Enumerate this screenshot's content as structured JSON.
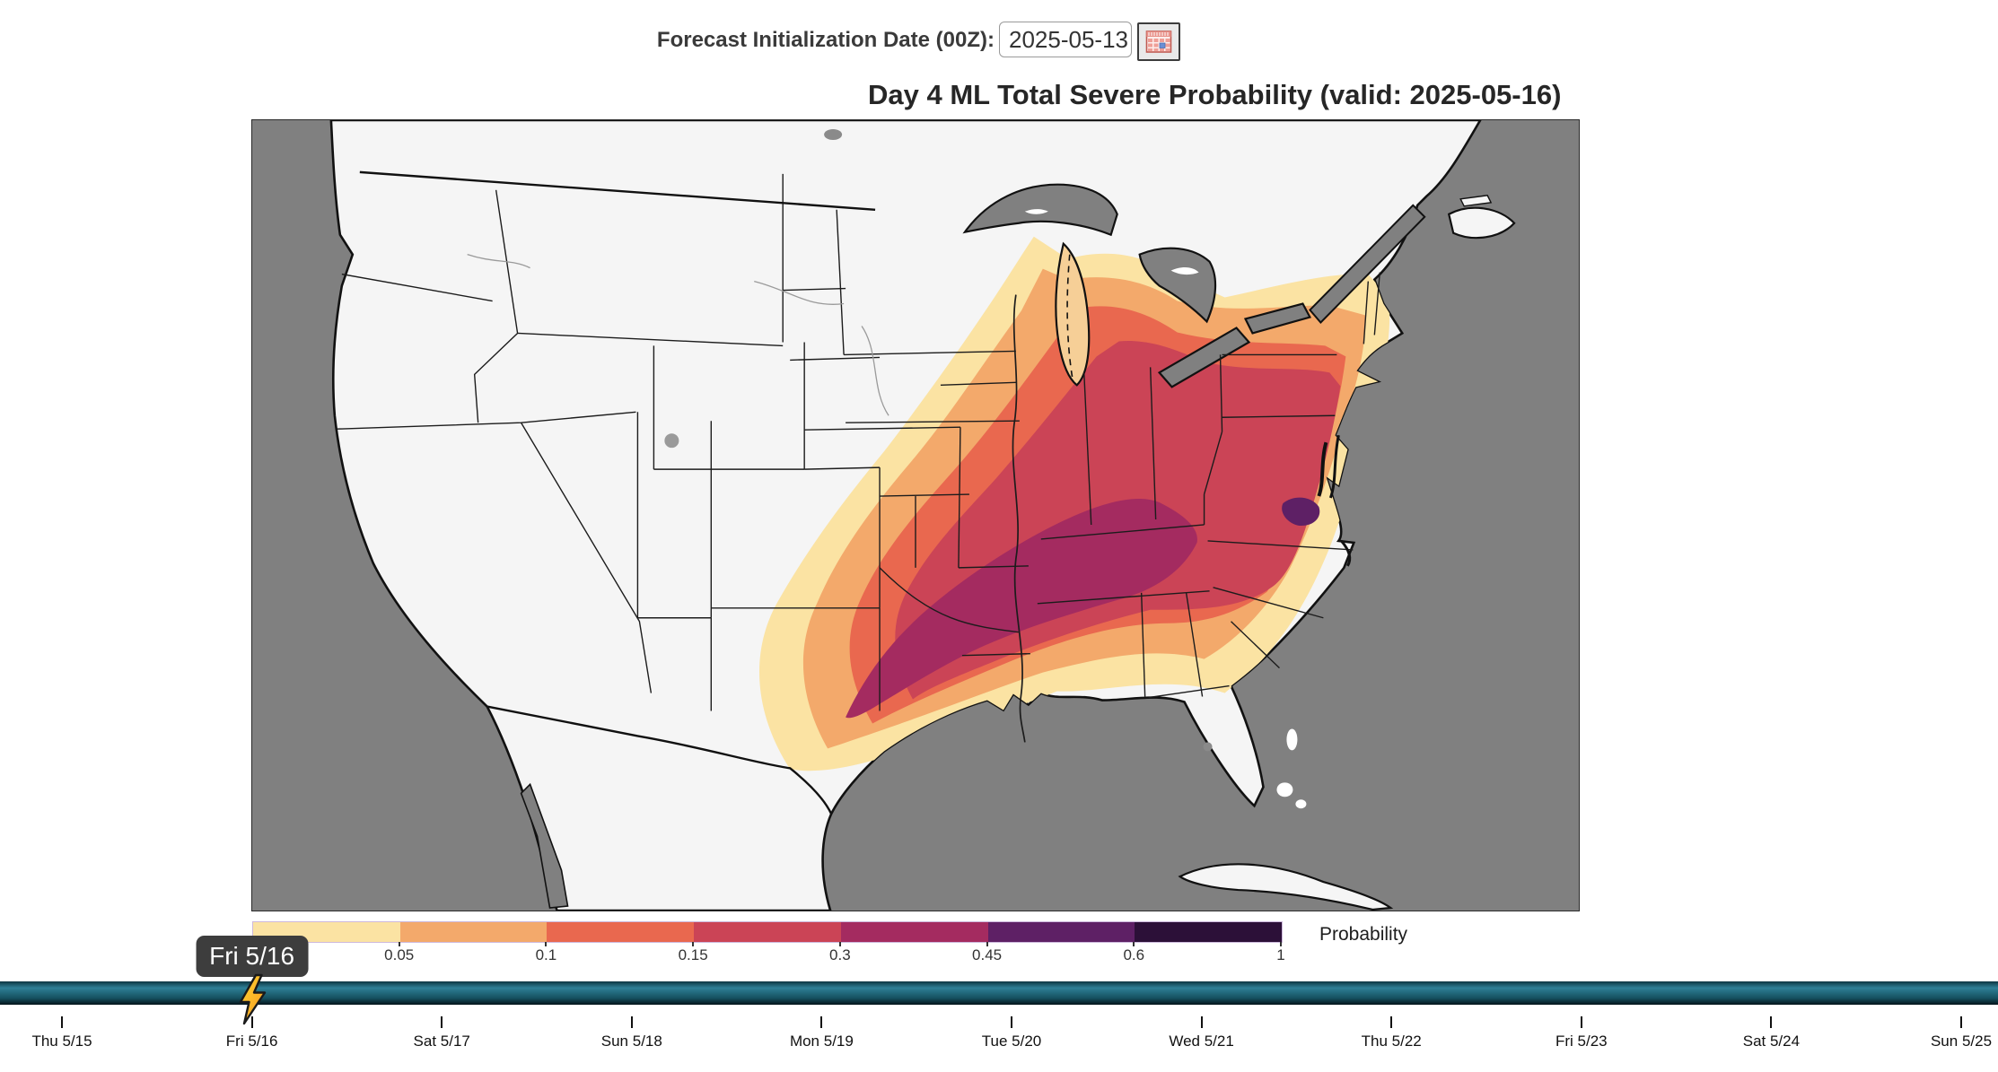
{
  "header": {
    "label": "Forecast Initialization Date (00Z):",
    "date_input": {
      "value": "2025-05-13"
    },
    "calendar_button": {
      "icon": "calendar-icon"
    }
  },
  "map": {
    "title": "Day 4 ML Total Severe Probability (valid: 2025-05-16)",
    "ocean_color": "#808080",
    "land_color": "#f5f5f5",
    "coast_color": "#111111"
  },
  "colorbar": {
    "label": "Probability",
    "tick_labels": [
      "0.05",
      "0.1",
      "0.15",
      "0.3",
      "0.45",
      "0.6",
      "1"
    ],
    "segments": [
      {
        "color": "#FBE3A3"
      },
      {
        "color": "#F3A96B"
      },
      {
        "color": "#E9684F"
      },
      {
        "color": "#CB4456"
      },
      {
        "color": "#A42B60"
      },
      {
        "color": "#5E2065"
      },
      {
        "color": "#2C1038"
      }
    ]
  },
  "timeline": {
    "tooltip": "Fri 5/16",
    "selected_index": 1,
    "marker_icon": "lightning-bolt-icon",
    "dates": [
      "Thu 5/15",
      "Fri 5/16",
      "Sat 5/17",
      "Sun 5/18",
      "Mon 5/19",
      "Tue 5/20",
      "Wed 5/21",
      "Thu 5/22",
      "Fri 5/23",
      "Sat 5/24",
      "Sun 5/25"
    ],
    "bar_colors": {
      "top": "#0d3642",
      "bright": "#2e7f96",
      "mid": "#15505f",
      "bottom": "#04141a"
    }
  }
}
